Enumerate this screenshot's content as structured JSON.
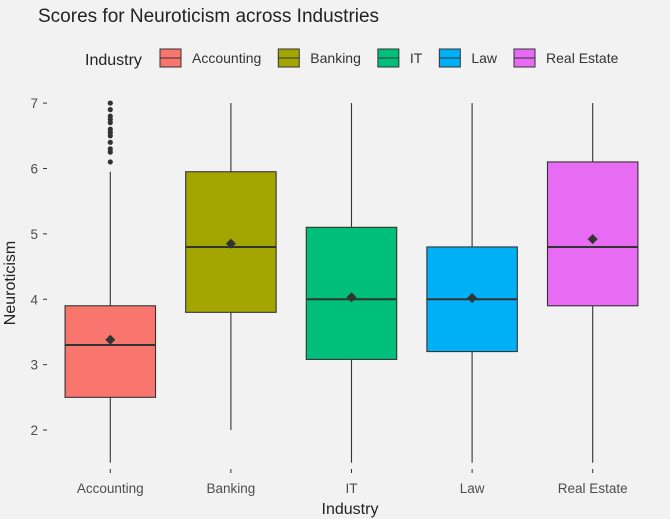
{
  "chart_data": {
    "type": "boxplot",
    "title": "Scores for Neuroticism across Industries",
    "xlabel": "Industry",
    "ylabel": "Neuroticism",
    "ylim": [
      1.45,
      7.2
    ],
    "yticks": [
      2,
      3,
      4,
      5,
      6,
      7
    ],
    "grid": false,
    "legend": {
      "title": "Industry",
      "position": "top"
    },
    "categories": [
      "Accounting",
      "Banking",
      "IT",
      "Law",
      "Real Estate"
    ],
    "series": [
      {
        "name": "Accounting",
        "color": "#f8766d",
        "whisker_low": 1.5,
        "q1": 2.5,
        "median": 3.3,
        "q3": 3.9,
        "whisker_high": 5.95,
        "mean": 3.38,
        "outliers": [
          6.1,
          6.25,
          6.3,
          6.4,
          6.5,
          6.55,
          6.6,
          6.7,
          6.75,
          6.8,
          6.9,
          7.0
        ]
      },
      {
        "name": "Banking",
        "color": "#a3a500",
        "whisker_low": 2.0,
        "q1": 3.8,
        "median": 4.8,
        "q3": 5.95,
        "whisker_high": 7.0,
        "mean": 4.85,
        "outliers": []
      },
      {
        "name": "IT",
        "color": "#00bf7d",
        "whisker_low": 1.5,
        "q1": 3.08,
        "median": 4.0,
        "q3": 5.1,
        "whisker_high": 7.0,
        "mean": 4.03,
        "outliers": []
      },
      {
        "name": "Law",
        "color": "#00b0f6",
        "whisker_low": 1.5,
        "q1": 3.2,
        "median": 4.0,
        "q3": 4.8,
        "whisker_high": 7.0,
        "mean": 4.02,
        "outliers": []
      },
      {
        "name": "Real Estate",
        "color": "#e76bf3",
        "whisker_low": 1.5,
        "q1": 3.9,
        "median": 4.8,
        "q3": 6.1,
        "whisker_high": 7.0,
        "mean": 4.92,
        "outliers": []
      }
    ]
  }
}
